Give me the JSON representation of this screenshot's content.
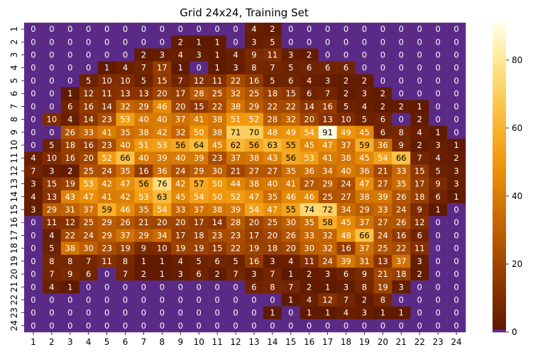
{
  "chart_data": {
    "type": "heatmap",
    "title": "Grid 24x24, Training Set",
    "xlabel": "",
    "ylabel": "",
    "x_categories": [
      "1",
      "2",
      "3",
      "4",
      "5",
      "6",
      "7",
      "8",
      "9",
      "10",
      "11",
      "12",
      "13",
      "14",
      "15",
      "16",
      "17",
      "18",
      "19",
      "20",
      "21",
      "22",
      "23",
      "24"
    ],
    "y_categories": [
      "1",
      "2",
      "3",
      "4",
      "5",
      "6",
      "7",
      "8",
      "9",
      "10",
      "11",
      "12",
      "13",
      "14",
      "15",
      "16",
      "17",
      "18",
      "19",
      "20",
      "21",
      "22",
      "23",
      "24"
    ],
    "values": [
      [
        0,
        0,
        0,
        0,
        0,
        0,
        0,
        0,
        0,
        0,
        0,
        0,
        4,
        2,
        0,
        0,
        0,
        0,
        0,
        0,
        0,
        0,
        0,
        0
      ],
      [
        0,
        0,
        0,
        0,
        0,
        0,
        0,
        0,
        2,
        1,
        1,
        0,
        3,
        5,
        0,
        0,
        0,
        0,
        0,
        0,
        0,
        0,
        0,
        0
      ],
      [
        0,
        0,
        0,
        0,
        0,
        0,
        2,
        3,
        4,
        3,
        1,
        4,
        9,
        11,
        3,
        2,
        0,
        0,
        0,
        0,
        0,
        0,
        0,
        0
      ],
      [
        0,
        0,
        0,
        0,
        1,
        4,
        7,
        17,
        1,
        0,
        1,
        3,
        8,
        7,
        5,
        6,
        6,
        6,
        0,
        0,
        0,
        0,
        0,
        0
      ],
      [
        0,
        0,
        0,
        5,
        10,
        10,
        5,
        15,
        7,
        12,
        11,
        22,
        16,
        5,
        6,
        4,
        3,
        2,
        2,
        0,
        0,
        0,
        0,
        0
      ],
      [
        0,
        0,
        1,
        12,
        11,
        13,
        13,
        20,
        17,
        28,
        25,
        32,
        25,
        18,
        15,
        6,
        7,
        2,
        3,
        2,
        0,
        0,
        0,
        0
      ],
      [
        0,
        0,
        6,
        16,
        14,
        32,
        29,
        46,
        20,
        15,
        22,
        38,
        29,
        22,
        22,
        14,
        16,
        5,
        4,
        2,
        2,
        1,
        0,
        0
      ],
      [
        0,
        10,
        4,
        14,
        23,
        53,
        40,
        40,
        37,
        41,
        38,
        51,
        52,
        28,
        32,
        20,
        13,
        10,
        5,
        6,
        0,
        2,
        0,
        0
      ],
      [
        0,
        0,
        26,
        33,
        41,
        35,
        38,
        42,
        32,
        50,
        38,
        71,
        70,
        48,
        49,
        54,
        91,
        49,
        45,
        6,
        8,
        4,
        1,
        0
      ],
      [
        0,
        5,
        18,
        16,
        23,
        40,
        51,
        53,
        56,
        64,
        45,
        62,
        56,
        63,
        55,
        45,
        47,
        37,
        59,
        36,
        9,
        2,
        3,
        1
      ],
      [
        4,
        10,
        16,
        20,
        52,
        66,
        40,
        39,
        40,
        39,
        23,
        37,
        38,
        43,
        56,
        53,
        41,
        38,
        45,
        54,
        66,
        7,
        4,
        2
      ],
      [
        7,
        3,
        2,
        25,
        24,
        35,
        16,
        36,
        24,
        29,
        30,
        21,
        27,
        27,
        35,
        36,
        34,
        40,
        36,
        21,
        33,
        15,
        5,
        3
      ],
      [
        3,
        15,
        19,
        53,
        42,
        47,
        56,
        76,
        42,
        57,
        50,
        44,
        38,
        40,
        41,
        27,
        29,
        24,
        47,
        27,
        35,
        17,
        9,
        3
      ],
      [
        4,
        13,
        43,
        47,
        41,
        42,
        53,
        63,
        45,
        54,
        50,
        52,
        47,
        35,
        46,
        46,
        25,
        27,
        38,
        39,
        26,
        18,
        6,
        1
      ],
      [
        3,
        29,
        31,
        37,
        59,
        46,
        35,
        54,
        33,
        37,
        38,
        39,
        54,
        47,
        55,
        74,
        72,
        34,
        29,
        33,
        24,
        9,
        1,
        0
      ],
      [
        0,
        11,
        12,
        25,
        29,
        26,
        21,
        20,
        20,
        17,
        14,
        28,
        20,
        25,
        30,
        35,
        58,
        45,
        37,
        27,
        26,
        12,
        0,
        0
      ],
      [
        0,
        4,
        22,
        24,
        29,
        37,
        29,
        34,
        17,
        18,
        23,
        23,
        17,
        20,
        26,
        33,
        32,
        48,
        66,
        24,
        16,
        6,
        0,
        0
      ],
      [
        0,
        5,
        38,
        30,
        23,
        19,
        9,
        10,
        19,
        19,
        15,
        22,
        19,
        18,
        20,
        30,
        32,
        16,
        37,
        25,
        22,
        11,
        0,
        0
      ],
      [
        0,
        8,
        8,
        7,
        11,
        8,
        1,
        1,
        4,
        5,
        6,
        5,
        16,
        3,
        4,
        11,
        24,
        39,
        31,
        13,
        37,
        3,
        0,
        0
      ],
      [
        0,
        7,
        9,
        6,
        0,
        7,
        2,
        1,
        3,
        6,
        2,
        7,
        3,
        7,
        1,
        2,
        3,
        6,
        9,
        21,
        18,
        2,
        0,
        0
      ],
      [
        0,
        4,
        1,
        0,
        0,
        0,
        0,
        0,
        0,
        0,
        0,
        0,
        6,
        8,
        7,
        2,
        1,
        3,
        8,
        19,
        3,
        0,
        0,
        0
      ],
      [
        0,
        0,
        0,
        0,
        0,
        0,
        0,
        0,
        0,
        0,
        0,
        0,
        0,
        0,
        1,
        4,
        12,
        7,
        2,
        8,
        0,
        0,
        0,
        0
      ],
      [
        0,
        0,
        0,
        0,
        0,
        0,
        0,
        0,
        0,
        0,
        0,
        0,
        0,
        1,
        0,
        1,
        1,
        4,
        3,
        1,
        1,
        0,
        0,
        0
      ],
      [
        0,
        0,
        0,
        0,
        0,
        0,
        0,
        0,
        0,
        0,
        0,
        0,
        0,
        0,
        0,
        0,
        0,
        0,
        0,
        0,
        0,
        0,
        0,
        0
      ]
    ],
    "annotated": true,
    "colorbar": {
      "range": [
        0,
        91
      ],
      "ticks": [
        0,
        20,
        40,
        60,
        80
      ],
      "colormap": "afmhot-like",
      "zero_color": "#5b2a86"
    }
  }
}
